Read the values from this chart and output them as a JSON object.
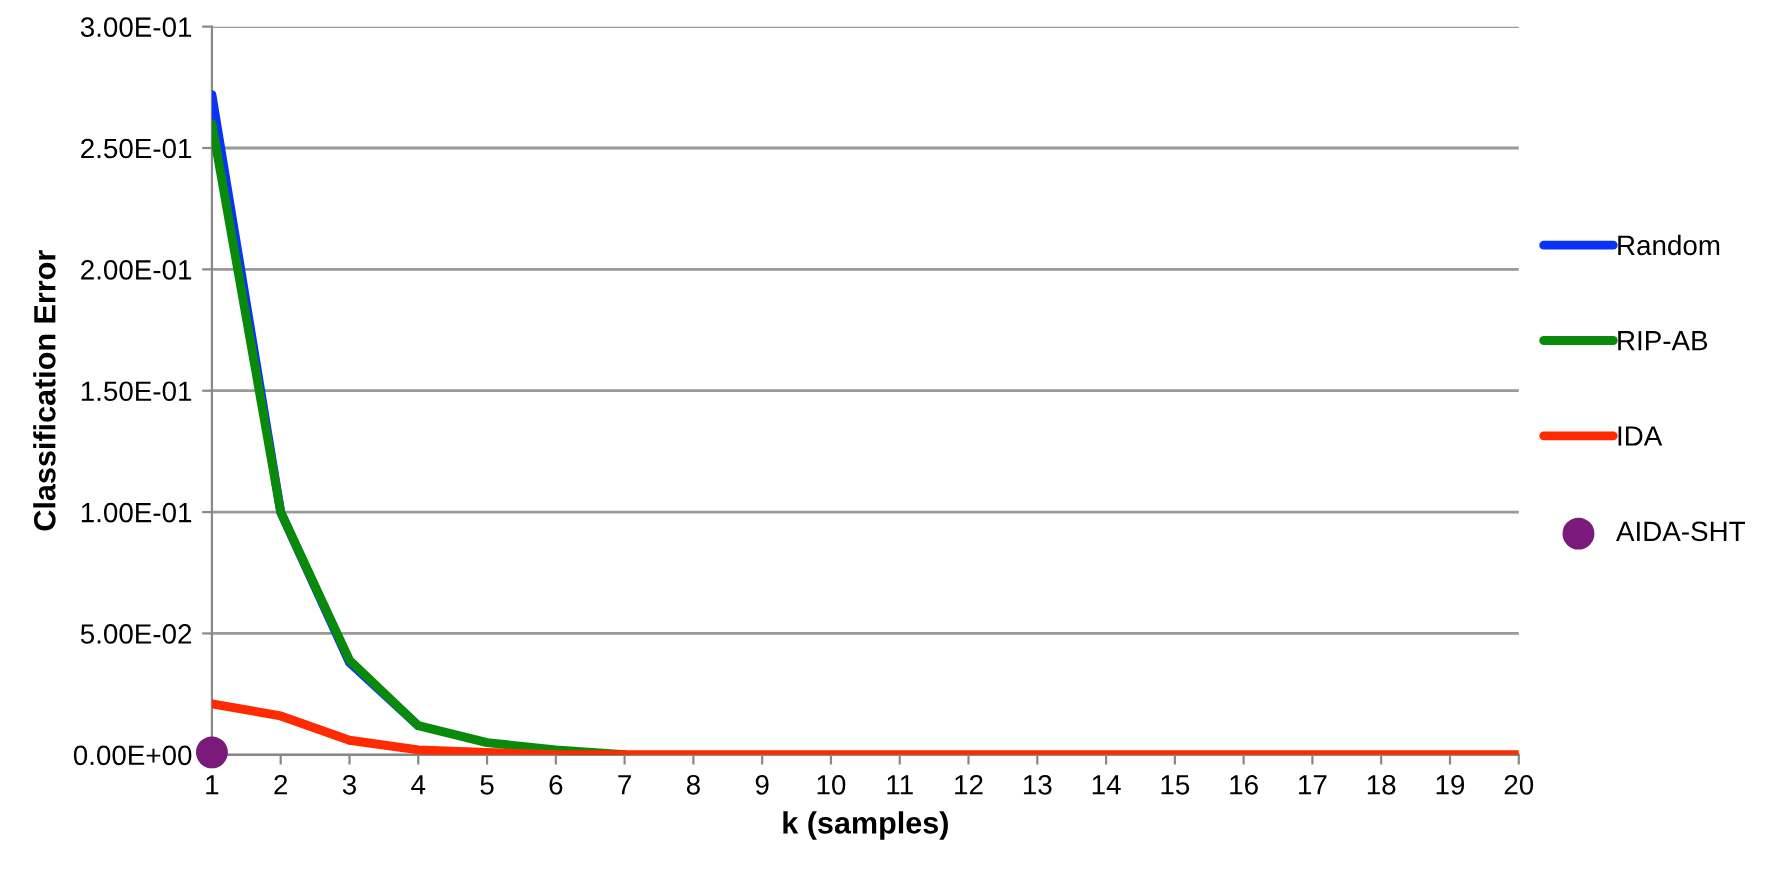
{
  "chart_data": {
    "type": "line",
    "xlabel": "k (samples)",
    "ylabel": "Classification Error",
    "categories": [
      "1",
      "2",
      "3",
      "4",
      "5",
      "6",
      "7",
      "8",
      "9",
      "10",
      "11",
      "12",
      "13",
      "14",
      "15",
      "16",
      "17",
      "18",
      "19",
      "20"
    ],
    "series": [
      {
        "name": "Random",
        "color": "#0a34f5",
        "values": [
          0.272,
          0.1,
          0.038,
          0.012,
          null,
          null,
          null,
          null,
          null,
          null,
          null,
          null,
          null,
          null,
          null,
          null,
          null,
          null,
          null,
          null
        ]
      },
      {
        "name": "RIP-AB",
        "color": "#0a8a0a",
        "values": [
          0.26,
          0.1,
          0.039,
          0.012,
          0.005,
          0.002,
          0,
          null,
          null,
          null,
          null,
          null,
          null,
          null,
          null,
          null,
          null,
          null,
          null,
          null
        ]
      },
      {
        "name": "IDA",
        "color": "#ff2a00",
        "values": [
          0.021,
          0.016,
          0.006,
          0.002,
          0.001,
          0,
          0,
          0,
          0,
          0,
          0,
          0,
          0,
          0,
          0,
          0,
          0,
          0,
          0,
          0
        ]
      },
      {
        "name": "AIDA-SHT",
        "type": "scatter",
        "marker": "circle",
        "color": "#7a1a7a",
        "values": [
          0.001,
          null,
          null,
          null,
          null,
          null,
          null,
          null,
          null,
          null,
          null,
          null,
          null,
          null,
          null,
          null,
          null,
          null,
          null,
          null
        ]
      }
    ],
    "ylim": [
      0,
      0.3
    ],
    "yticks": [
      {
        "value": 0,
        "label": "0.00E+00"
      },
      {
        "value": 0.05,
        "label": "5.00E-02"
      },
      {
        "value": 0.1,
        "label": "1.00E-01"
      },
      {
        "value": 0.15,
        "label": "1.50E-01"
      },
      {
        "value": 0.2,
        "label": "2.00E-01"
      },
      {
        "value": 0.25,
        "label": "2.50E-01"
      },
      {
        "value": 0.3,
        "label": "3.00E-01"
      }
    ],
    "grid": "y",
    "legend": "right"
  }
}
